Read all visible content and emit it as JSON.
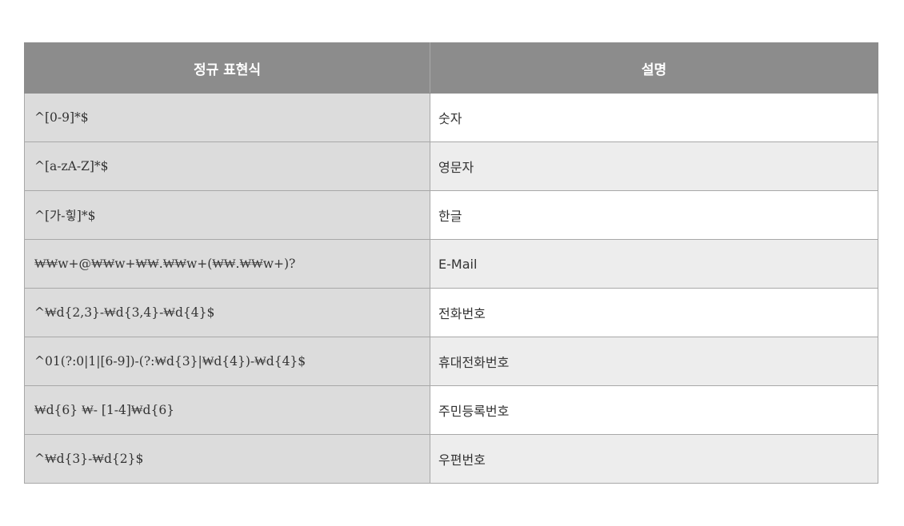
{
  "table": {
    "headers": {
      "pattern": "정규 표현식",
      "description": "설명"
    },
    "rows": [
      {
        "pattern": "^[0-9]*$",
        "description": "숫자"
      },
      {
        "pattern": "^[a-zA-Z]*$",
        "description": "영문자"
      },
      {
        "pattern": "^[가-힣]*$",
        "description": "한글"
      },
      {
        "pattern": "₩₩w+@₩₩w+₩₩.₩₩w+(₩₩.₩₩w+)?",
        "description": "E-Mail"
      },
      {
        "pattern": "^₩d{2,3}-₩d{3,4}-₩d{4}$",
        "description": "전화번호"
      },
      {
        "pattern": "^01(?:0|1|[6-9])-(?:₩d{3}|₩d{4})-₩d{4}$",
        "description": "휴대전화번호"
      },
      {
        "pattern": "₩d{6} ₩- [1-4]₩d{6}",
        "description": "주민등록번호"
      },
      {
        "pattern": "^₩d{3}-₩d{2}$",
        "description": "우편번호"
      }
    ]
  }
}
